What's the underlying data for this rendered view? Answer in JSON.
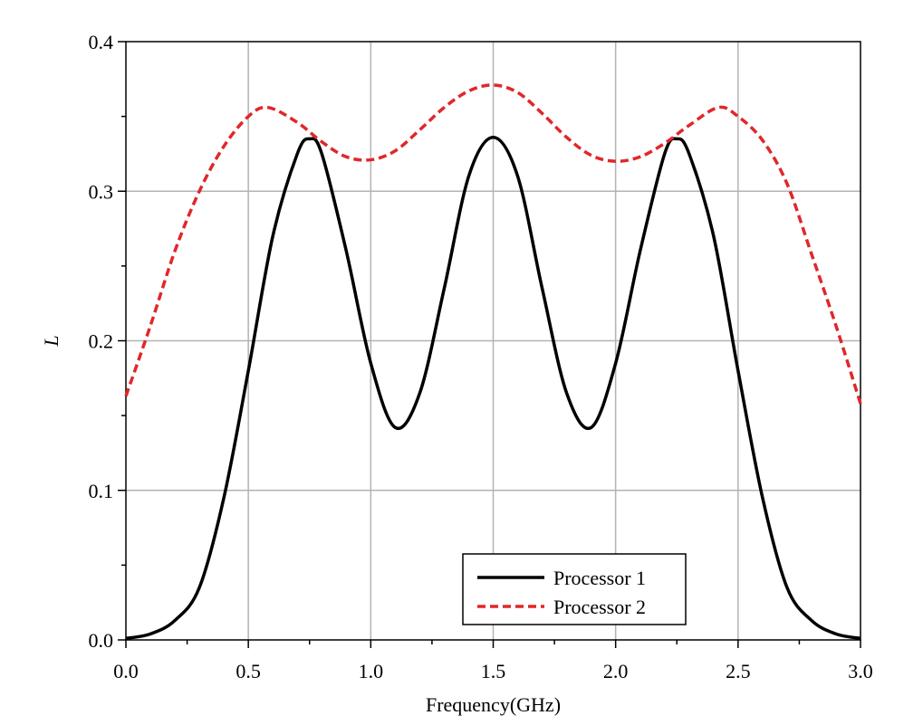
{
  "chart_data": {
    "type": "line",
    "xlabel": "Frequency(GHz)",
    "ylabel": "L",
    "xlim": [
      0.0,
      3.0
    ],
    "ylim": [
      0.0,
      0.4
    ],
    "x_ticks": [
      "0.0",
      "0.5",
      "1.0",
      "1.5",
      "2.0",
      "2.5",
      "3.0"
    ],
    "y_ticks": [
      "0.0",
      "0.1",
      "0.2",
      "0.3",
      "0.4"
    ],
    "grid": true,
    "legend_position": "bottom-center",
    "series": [
      {
        "name": "Processor 1",
        "color": "#000000",
        "dash": "solid",
        "x": [
          0.0,
          0.1,
          0.2,
          0.3,
          0.4,
          0.5,
          0.6,
          0.7,
          0.75,
          0.8,
          0.9,
          1.0,
          1.1,
          1.2,
          1.3,
          1.4,
          1.5,
          1.6,
          1.7,
          1.8,
          1.9,
          2.0,
          2.1,
          2.2,
          2.25,
          2.3,
          2.4,
          2.5,
          2.6,
          2.7,
          2.8,
          2.9,
          3.0
        ],
        "y": [
          0.001,
          0.004,
          0.013,
          0.035,
          0.095,
          0.18,
          0.27,
          0.325,
          0.335,
          0.325,
          0.26,
          0.185,
          0.142,
          0.165,
          0.235,
          0.31,
          0.336,
          0.31,
          0.235,
          0.165,
          0.142,
          0.185,
          0.26,
          0.325,
          0.335,
          0.325,
          0.27,
          0.18,
          0.095,
          0.035,
          0.013,
          0.004,
          0.001
        ]
      },
      {
        "name": "Processor 2",
        "color": "#e0272b",
        "dash": "dashed",
        "x": [
          0.0,
          0.1,
          0.2,
          0.3,
          0.4,
          0.5,
          0.58,
          0.7,
          0.8,
          0.9,
          1.0,
          1.1,
          1.2,
          1.3,
          1.4,
          1.5,
          1.6,
          1.7,
          1.8,
          1.9,
          2.0,
          2.1,
          2.2,
          2.3,
          2.42,
          2.5,
          2.6,
          2.7,
          2.8,
          2.9,
          3.0
        ],
        "y": [
          0.163,
          0.21,
          0.26,
          0.3,
          0.33,
          0.35,
          0.356,
          0.346,
          0.333,
          0.323,
          0.321,
          0.327,
          0.341,
          0.356,
          0.367,
          0.371,
          0.366,
          0.352,
          0.336,
          0.324,
          0.32,
          0.323,
          0.332,
          0.344,
          0.356,
          0.35,
          0.334,
          0.305,
          0.258,
          0.21,
          0.158
        ]
      }
    ]
  }
}
